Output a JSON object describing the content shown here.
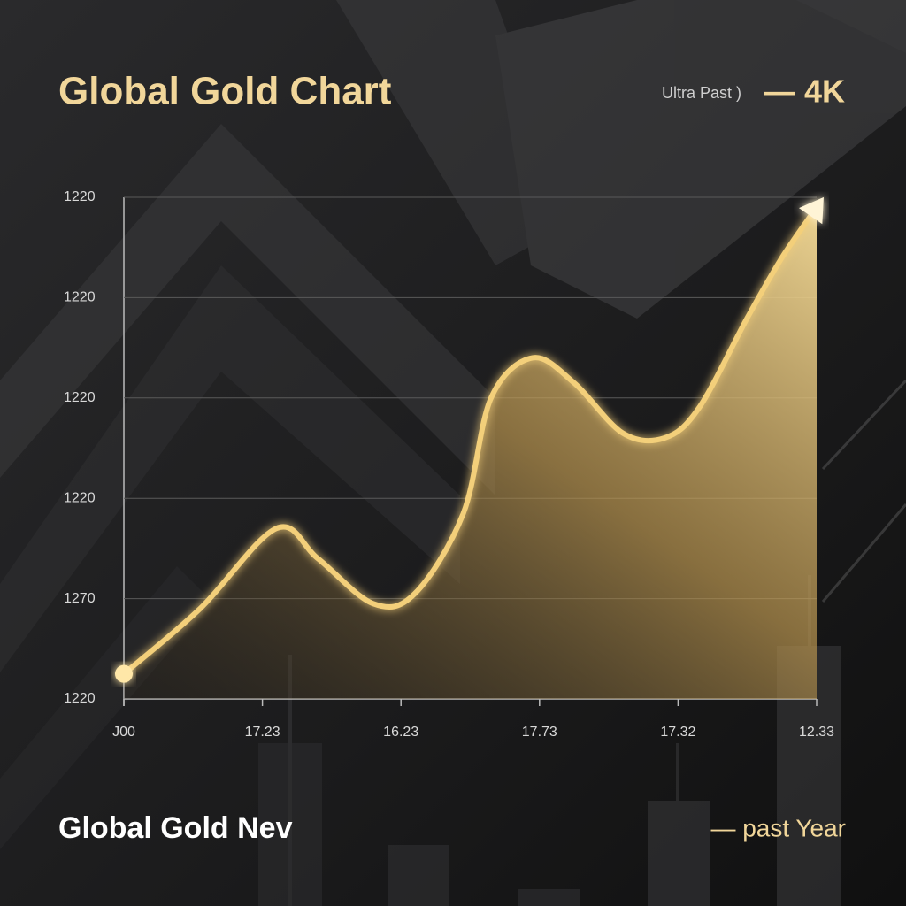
{
  "chart_data": {
    "type": "line",
    "title": "Global Gold Chart",
    "badge": {
      "label": "Ultra Past )",
      "value": "— 4K"
    },
    "footer": {
      "brand": "Global Gold Nev",
      "legend": "— past Year"
    },
    "x": [
      0,
      0.55,
      1.1,
      1.4,
      1.8,
      2.1,
      2.45,
      2.65,
      2.95,
      3.25,
      3.6,
      3.9,
      4.15,
      4.5,
      4.75,
      5.0
    ],
    "values": [
      0.25,
      0.9,
      1.7,
      1.4,
      0.95,
      1.05,
      1.85,
      3.0,
      3.4,
      3.15,
      2.65,
      2.6,
      2.9,
      3.8,
      4.4,
      4.9
    ],
    "color": "#f3cf7a",
    "xlim": [
      0,
      5
    ],
    "xticks": [
      {
        "value": 0,
        "label": "J00"
      },
      {
        "value": 1,
        "label": "17.23"
      },
      {
        "value": 2,
        "label": "16.23"
      },
      {
        "value": 3,
        "label": "17.73"
      },
      {
        "value": 4,
        "label": "17.32"
      },
      {
        "value": 5,
        "label": "12.33"
      }
    ],
    "ylim": [
      0,
      5
    ],
    "yticks": [
      {
        "value": 0,
        "label": "1220"
      },
      {
        "value": 1,
        "label": "1270"
      },
      {
        "value": 2,
        "label": "1220"
      },
      {
        "value": 3,
        "label": "1220"
      },
      {
        "value": 4,
        "label": "1220"
      },
      {
        "value": 5,
        "label": "1220"
      }
    ],
    "grid": true
  }
}
